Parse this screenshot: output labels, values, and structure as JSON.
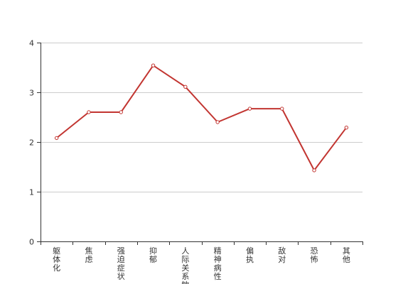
{
  "chart_data": {
    "type": "line",
    "categories": [
      "躯体化",
      "焦虑",
      "强迫症状",
      "抑郁",
      "人际关系敏感",
      "精神病性",
      "偏执",
      "敌对",
      "恐怖",
      "其他"
    ],
    "series": [
      {
        "values": [
          2.08,
          2.6,
          2.6,
          3.54,
          3.11,
          2.4,
          2.67,
          2.67,
          1.43,
          2.29
        ]
      }
    ],
    "ylim": [
      0,
      4
    ],
    "yticks": [
      0,
      1,
      2,
      3,
      4
    ],
    "grid": true,
    "colors": {
      "line": "#c23531",
      "grid": "#cccccc",
      "axis": "#333333"
    }
  }
}
